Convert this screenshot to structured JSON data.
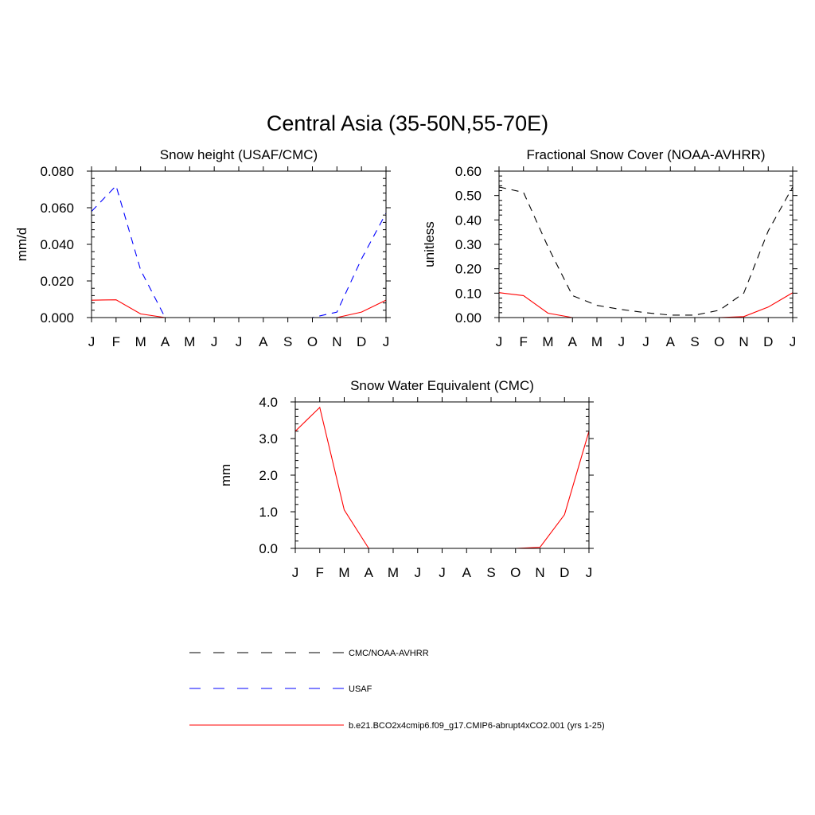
{
  "figure": {
    "title": "Central Asia (35-50N,55-70E)"
  },
  "legend": {
    "entries": [
      {
        "label": "CMC/NOAA-AVHRR",
        "color": "#000000",
        "dash": "dashed"
      },
      {
        "label": "USAF",
        "color": "#0000ff",
        "dash": "dashed"
      },
      {
        "label": "b.e21.BCO2x4cmip6.f09_g17.CMIP6-abrupt4xCO2.001 (yrs 1-25)",
        "color": "#ff0000",
        "dash": "solid"
      }
    ]
  },
  "chart_data": [
    {
      "type": "line",
      "title": "Snow height (USAF/CMC)",
      "xlabel": "",
      "ylabel": "mm/d",
      "categories": [
        "J",
        "F",
        "M",
        "A",
        "M",
        "J",
        "J",
        "A",
        "S",
        "O",
        "N",
        "D",
        "J"
      ],
      "ylim": [
        0,
        0.08
      ],
      "yticks": [
        0.0,
        0.02,
        0.04,
        0.06,
        0.08
      ],
      "ytick_labels": [
        "0.000",
        "0.020",
        "0.040",
        "0.060",
        "0.080"
      ],
      "series": [
        {
          "name": "USAF",
          "color": "#0000ff",
          "dash": "dashed",
          "values": [
            0.058,
            0.072,
            0.026,
            0.0,
            0.0,
            0.0,
            0.0,
            0.0,
            0.0,
            0.0,
            0.003,
            0.032,
            0.057
          ]
        },
        {
          "name": "b.e21.BCO2x4cmip6.f09_g17.CMIP6-abrupt4xCO2.001 (yrs 1-25)",
          "color": "#ff0000",
          "dash": "solid",
          "values": [
            0.0095,
            0.0097,
            0.002,
            0.0,
            0.0,
            0.0,
            0.0,
            0.0,
            0.0,
            0.0,
            0.0,
            0.003,
            0.0095
          ]
        }
      ]
    },
    {
      "type": "line",
      "title": "Fractional Snow Cover (NOAA-AVHRR)",
      "xlabel": "",
      "ylabel": "unitless",
      "categories": [
        "J",
        "F",
        "M",
        "A",
        "M",
        "J",
        "J",
        "A",
        "S",
        "O",
        "N",
        "D",
        "J"
      ],
      "ylim": [
        0,
        0.6
      ],
      "yticks": [
        0.0,
        0.1,
        0.2,
        0.3,
        0.4,
        0.5,
        0.6
      ],
      "ytick_labels": [
        "0.00",
        "0.10",
        "0.20",
        "0.30",
        "0.40",
        "0.50",
        "0.60"
      ],
      "series": [
        {
          "name": "CMC/NOAA-AVHRR",
          "color": "#000000",
          "dash": "dashed",
          "values": [
            0.535,
            0.513,
            0.29,
            0.09,
            0.05,
            0.033,
            0.02,
            0.01,
            0.01,
            0.03,
            0.1,
            0.355,
            0.535
          ]
        },
        {
          "name": "b.e21.BCO2x4cmip6.f09_g17.CMIP6-abrupt4xCO2.001 (yrs 1-25)",
          "color": "#ff0000",
          "dash": "solid",
          "values": [
            0.102,
            0.09,
            0.018,
            0.0,
            0.0,
            0.0,
            0.0,
            0.0,
            0.0,
            0.0,
            0.004,
            0.043,
            0.102
          ]
        }
      ]
    },
    {
      "type": "line",
      "title": "Snow Water Equivalent (CMC)",
      "xlabel": "",
      "ylabel": "mm",
      "categories": [
        "J",
        "F",
        "M",
        "A",
        "M",
        "J",
        "J",
        "A",
        "S",
        "O",
        "N",
        "D",
        "J"
      ],
      "ylim": [
        0,
        4
      ],
      "yticks": [
        0,
        1,
        2,
        3,
        4
      ],
      "ytick_labels": [
        "0.0",
        "1.0",
        "2.0",
        "3.0",
        "4.0"
      ],
      "series": [
        {
          "name": "CMC/NOAA-AVHRR",
          "color": "#000000",
          "dash": "dashed",
          "values": [
            0,
            0,
            0,
            0,
            0,
            0,
            0,
            0,
            0,
            0,
            0,
            0,
            0
          ]
        },
        {
          "name": "b.e21.BCO2x4cmip6.f09_g17.CMIP6-abrupt4xCO2.001 (yrs 1-25)",
          "color": "#ff0000",
          "dash": "solid",
          "values": [
            3.2,
            3.85,
            1.05,
            0.0,
            0.0,
            0.0,
            0.0,
            0.0,
            0.0,
            0.0,
            0.03,
            0.92,
            3.2
          ]
        }
      ]
    }
  ]
}
